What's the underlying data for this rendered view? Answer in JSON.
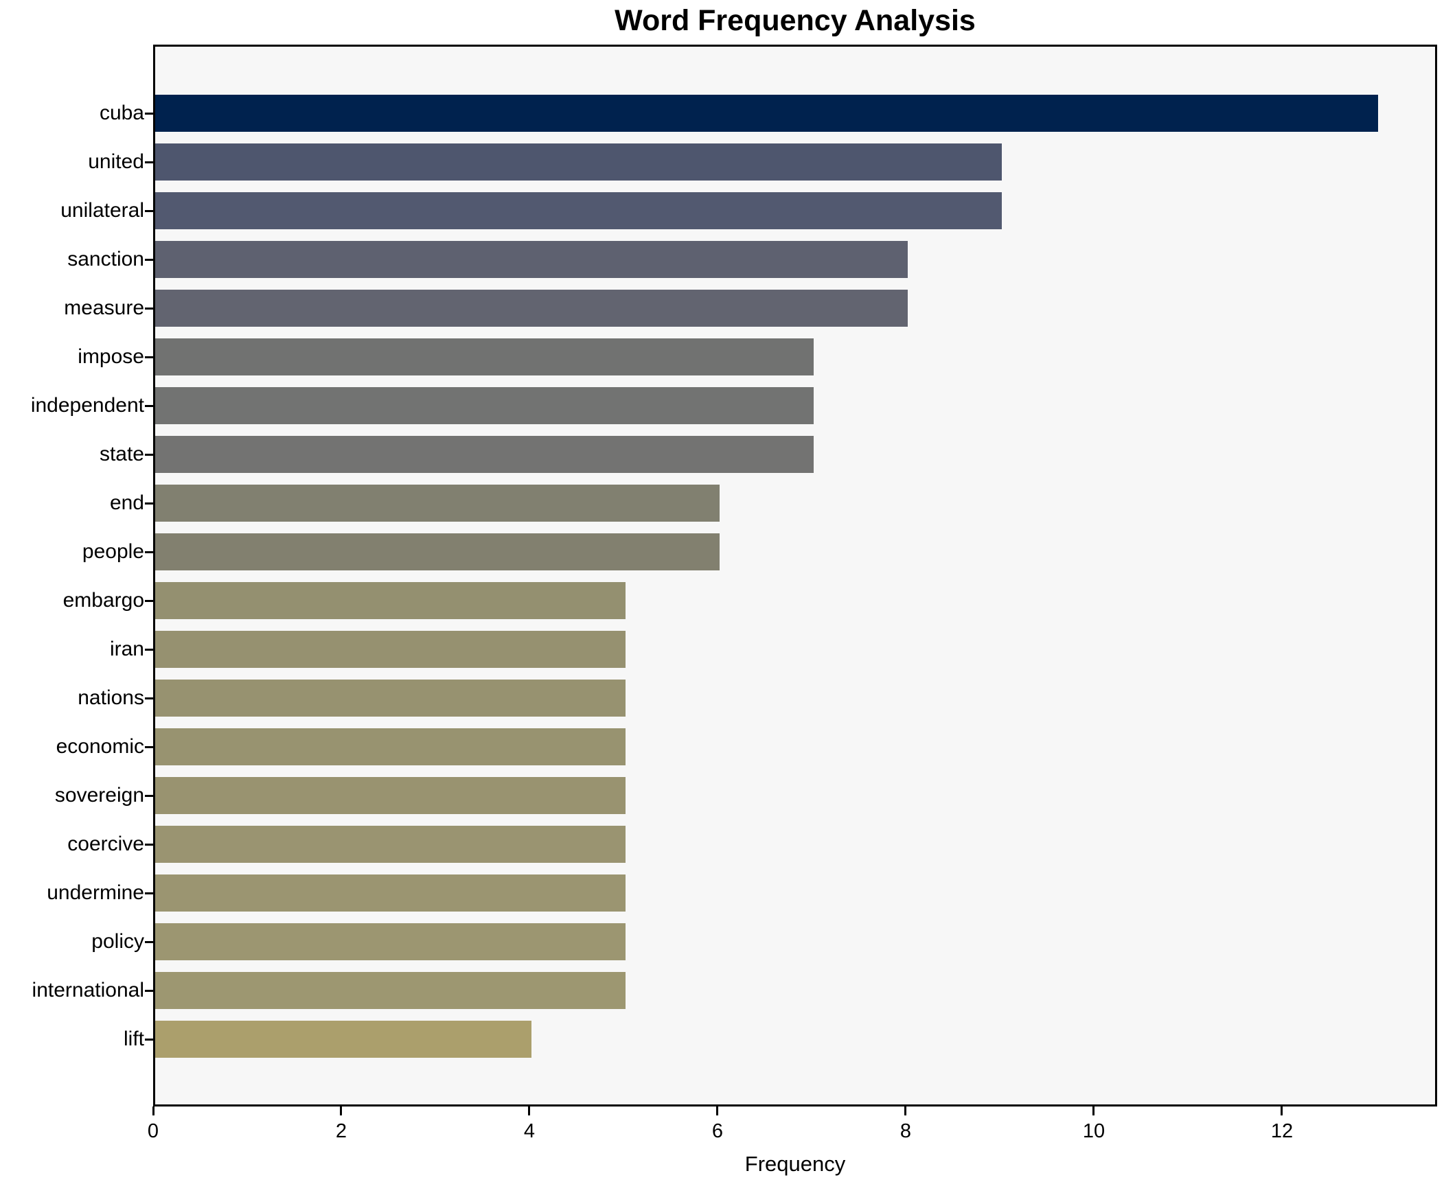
{
  "chart_data": {
    "type": "bar",
    "orientation": "horizontal",
    "title": "Word Frequency Analysis",
    "xlabel": "Frequency",
    "ylabel": "",
    "categories": [
      "cuba",
      "united",
      "unilateral",
      "sanction",
      "measure",
      "impose",
      "independent",
      "state",
      "end",
      "people",
      "embargo",
      "iran",
      "nations",
      "economic",
      "sovereign",
      "coercive",
      "undermine",
      "policy",
      "international",
      "lift"
    ],
    "values": [
      13,
      9,
      9,
      8,
      8,
      7,
      7,
      7,
      6,
      6,
      5,
      5,
      5,
      5,
      5,
      5,
      5,
      5,
      5,
      4
    ],
    "bar_colors": [
      "#00224e",
      "#4e566e",
      "#525970",
      "#5e6170",
      "#626470",
      "#717271",
      "#727372",
      "#737372",
      "#818070",
      "#82806f",
      "#949070",
      "#969170",
      "#979270",
      "#989370",
      "#999370",
      "#9a9471",
      "#9b9571",
      "#9c9671",
      "#9d9771",
      "#ab9f6c"
    ],
    "xlim": [
      0,
      13.65
    ],
    "xticks": [
      0,
      2,
      4,
      6,
      8,
      10,
      12
    ],
    "grid": false,
    "legend": null,
    "plot_bg": "#f7f7f7",
    "figure_bg": "#ffffff",
    "spine_color": "#000000",
    "text_color": "#000000"
  }
}
